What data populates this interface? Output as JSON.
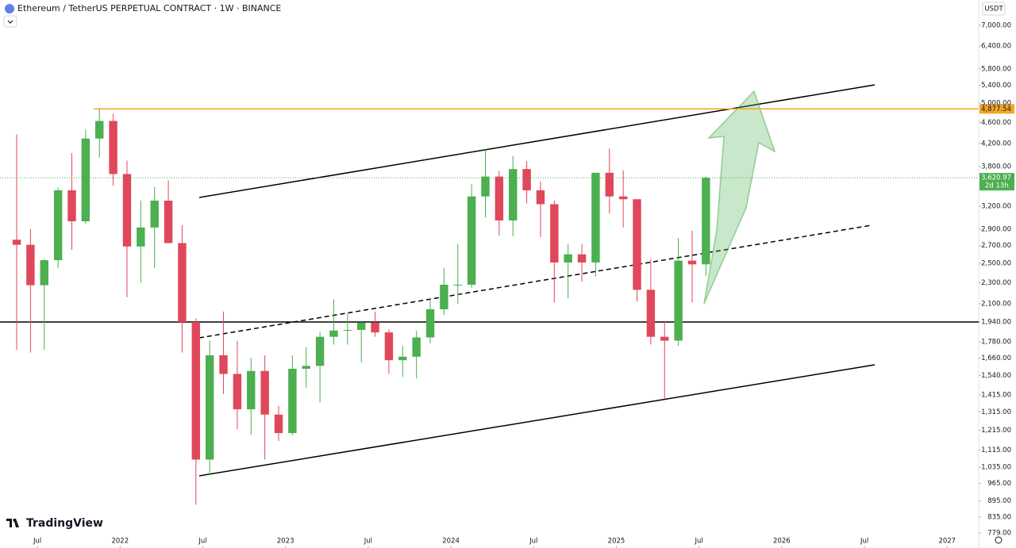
{
  "header": {
    "title": "Ethereum / TetherUS PERPETUAL CONTRACT · 1W · BINANCE",
    "currency": "USDT"
  },
  "brand": "TradingView",
  "chart_data": {
    "type": "candlestick",
    "log_scale": true,
    "up_color": "#4caf50",
    "down_color": "#e0475a",
    "x": [
      "2021-05",
      "2021-06",
      "2021-07",
      "2021-08",
      "2021-09",
      "2021-10",
      "2021-11",
      "2021-12",
      "2022-01",
      "2022-02",
      "2022-03",
      "2022-04",
      "2022-05",
      "2022-06",
      "2022-07",
      "2022-08",
      "2022-09",
      "2022-10",
      "2022-11",
      "2022-12",
      "2023-01",
      "2023-02",
      "2023-03",
      "2023-04",
      "2023-05",
      "2023-06",
      "2023-07",
      "2023-08",
      "2023-09",
      "2023-10",
      "2023-11",
      "2023-12",
      "2024-01",
      "2024-02",
      "2024-03",
      "2024-04",
      "2024-05",
      "2024-06",
      "2024-07",
      "2024-08",
      "2024-09",
      "2024-10",
      "2024-11",
      "2024-12",
      "2025-01",
      "2025-02",
      "2025-03",
      "2025-04",
      "2025-05",
      "2025-06",
      "2025-07"
    ],
    "open": [
      2770,
      2710,
      2275,
      2535,
      3430,
      3000,
      4290,
      4630,
      3680,
      2690,
      2920,
      3280,
      2730,
      1940,
      1070,
      1680,
      1550,
      1330,
      1570,
      1300,
      1200,
      1585,
      1605,
      1820,
      1870,
      1875,
      1935,
      1855,
      1645,
      1670,
      1815,
      2050,
      2280,
      2280,
      3340,
      3640,
      3010,
      3760,
      3430,
      3230,
      2510,
      2600,
      2510,
      3700,
      3340,
      3300,
      2230,
      1820,
      1790,
      2530,
      2490
    ],
    "high": [
      4370,
      2900,
      2550,
      3470,
      4030,
      4460,
      4870,
      4780,
      3900,
      3280,
      3480,
      3580,
      2950,
      1970,
      1790,
      2030,
      1790,
      1660,
      1680,
      1350,
      1680,
      1740,
      1860,
      2140,
      2010,
      1930,
      2030,
      1880,
      1750,
      1870,
      2140,
      2450,
      2720,
      3520,
      4090,
      3730,
      3980,
      3890,
      3560,
      3280,
      2720,
      2720,
      3680,
      4110,
      3740,
      3300,
      2550,
      1950,
      2790,
      2880,
      3640
    ],
    "low": [
      1720,
      1700,
      1720,
      2450,
      2650,
      2970,
      3950,
      3500,
      2160,
      2300,
      2450,
      2770,
      1700,
      880,
      1000,
      1420,
      1220,
      1190,
      1070,
      1160,
      1190,
      1460,
      1370,
      1760,
      1760,
      1630,
      1820,
      1550,
      1530,
      1520,
      1770,
      2000,
      2100,
      2250,
      3050,
      2820,
      2810,
      3240,
      2800,
      2110,
      2150,
      2310,
      2360,
      3100,
      2920,
      2120,
      1760,
      1390,
      1750,
      2110,
      2370
    ],
    "close": [
      2710,
      2275,
      2535,
      3430,
      3000,
      4290,
      4630,
      3680,
      2690,
      2920,
      3280,
      2730,
      1940,
      1070,
      1680,
      1550,
      1330,
      1570,
      1300,
      1200,
      1585,
      1605,
      1820,
      1870,
      1875,
      1935,
      1855,
      1645,
      1670,
      1815,
      2050,
      2280,
      2280,
      3340,
      3640,
      3010,
      3760,
      3430,
      3230,
      2510,
      2600,
      2510,
      3700,
      3340,
      3300,
      2230,
      1820,
      1790,
      2530,
      2490,
      3620.97
    ],
    "xlim": [
      "2021-04",
      "2027-03"
    ],
    "xticks": [
      {
        "value": "2021-07",
        "label": "Jul"
      },
      {
        "value": "2022-01",
        "label": "2022"
      },
      {
        "value": "2022-07",
        "label": "Jul"
      },
      {
        "value": "2023-01",
        "label": "2023"
      },
      {
        "value": "2023-07",
        "label": "Jul"
      },
      {
        "value": "2024-01",
        "label": "2024"
      },
      {
        "value": "2024-07",
        "label": "Jul"
      },
      {
        "value": "2025-01",
        "label": "2025"
      },
      {
        "value": "2025-07",
        "label": "Jul"
      },
      {
        "value": "2026-01",
        "label": "2026"
      },
      {
        "value": "2026-07",
        "label": "Jul"
      },
      {
        "value": "2027-01",
        "label": "2027"
      }
    ],
    "ylim": [
      730,
      7812
    ],
    "yticks": [
      {
        "value": 779,
        "label": "779.00"
      },
      {
        "value": 835,
        "label": "835.00"
      },
      {
        "value": 895,
        "label": "895.00"
      },
      {
        "value": 965,
        "label": "965.00"
      },
      {
        "value": 1035,
        "label": "1,035.00"
      },
      {
        "value": 1115,
        "label": "1,115.00"
      },
      {
        "value": 1215,
        "label": "1,215.00"
      },
      {
        "value": 1315,
        "label": "1,315.00"
      },
      {
        "value": 1415,
        "label": "1,415.00"
      },
      {
        "value": 1540,
        "label": "1,540.00"
      },
      {
        "value": 1660,
        "label": "1,660.00"
      },
      {
        "value": 1780,
        "label": "1,780.00"
      },
      {
        "value": 1940,
        "label": "1,940.00"
      },
      {
        "value": 2100,
        "label": "2,100.00"
      },
      {
        "value": 2300,
        "label": "2,300.00"
      },
      {
        "value": 2500,
        "label": "2,500.00"
      },
      {
        "value": 2700,
        "label": "2,700.00"
      },
      {
        "value": 2900,
        "label": "2,900.00"
      },
      {
        "value": 3200,
        "label": "3,200.00"
      },
      {
        "value": 3800,
        "label": "3,800.00"
      },
      {
        "value": 4200,
        "label": "4,200.00"
      },
      {
        "value": 4600,
        "label": "4,600.00"
      },
      {
        "value": 5000,
        "label": "5,000.00"
      },
      {
        "value": 5400,
        "label": "5,400.00"
      },
      {
        "value": 5800,
        "label": "5,800.00"
      },
      {
        "value": 6400,
        "label": "6,400.00"
      },
      {
        "value": 7000,
        "label": "7,000.00"
      }
    ],
    "price_line": {
      "value": 4877.54,
      "label": "4,877.54",
      "color": "#f5a623"
    },
    "last_price": {
      "value": 3620.97,
      "label": "3,620.97",
      "countdown": "2d 13h",
      "color": "#4caf50"
    }
  }
}
